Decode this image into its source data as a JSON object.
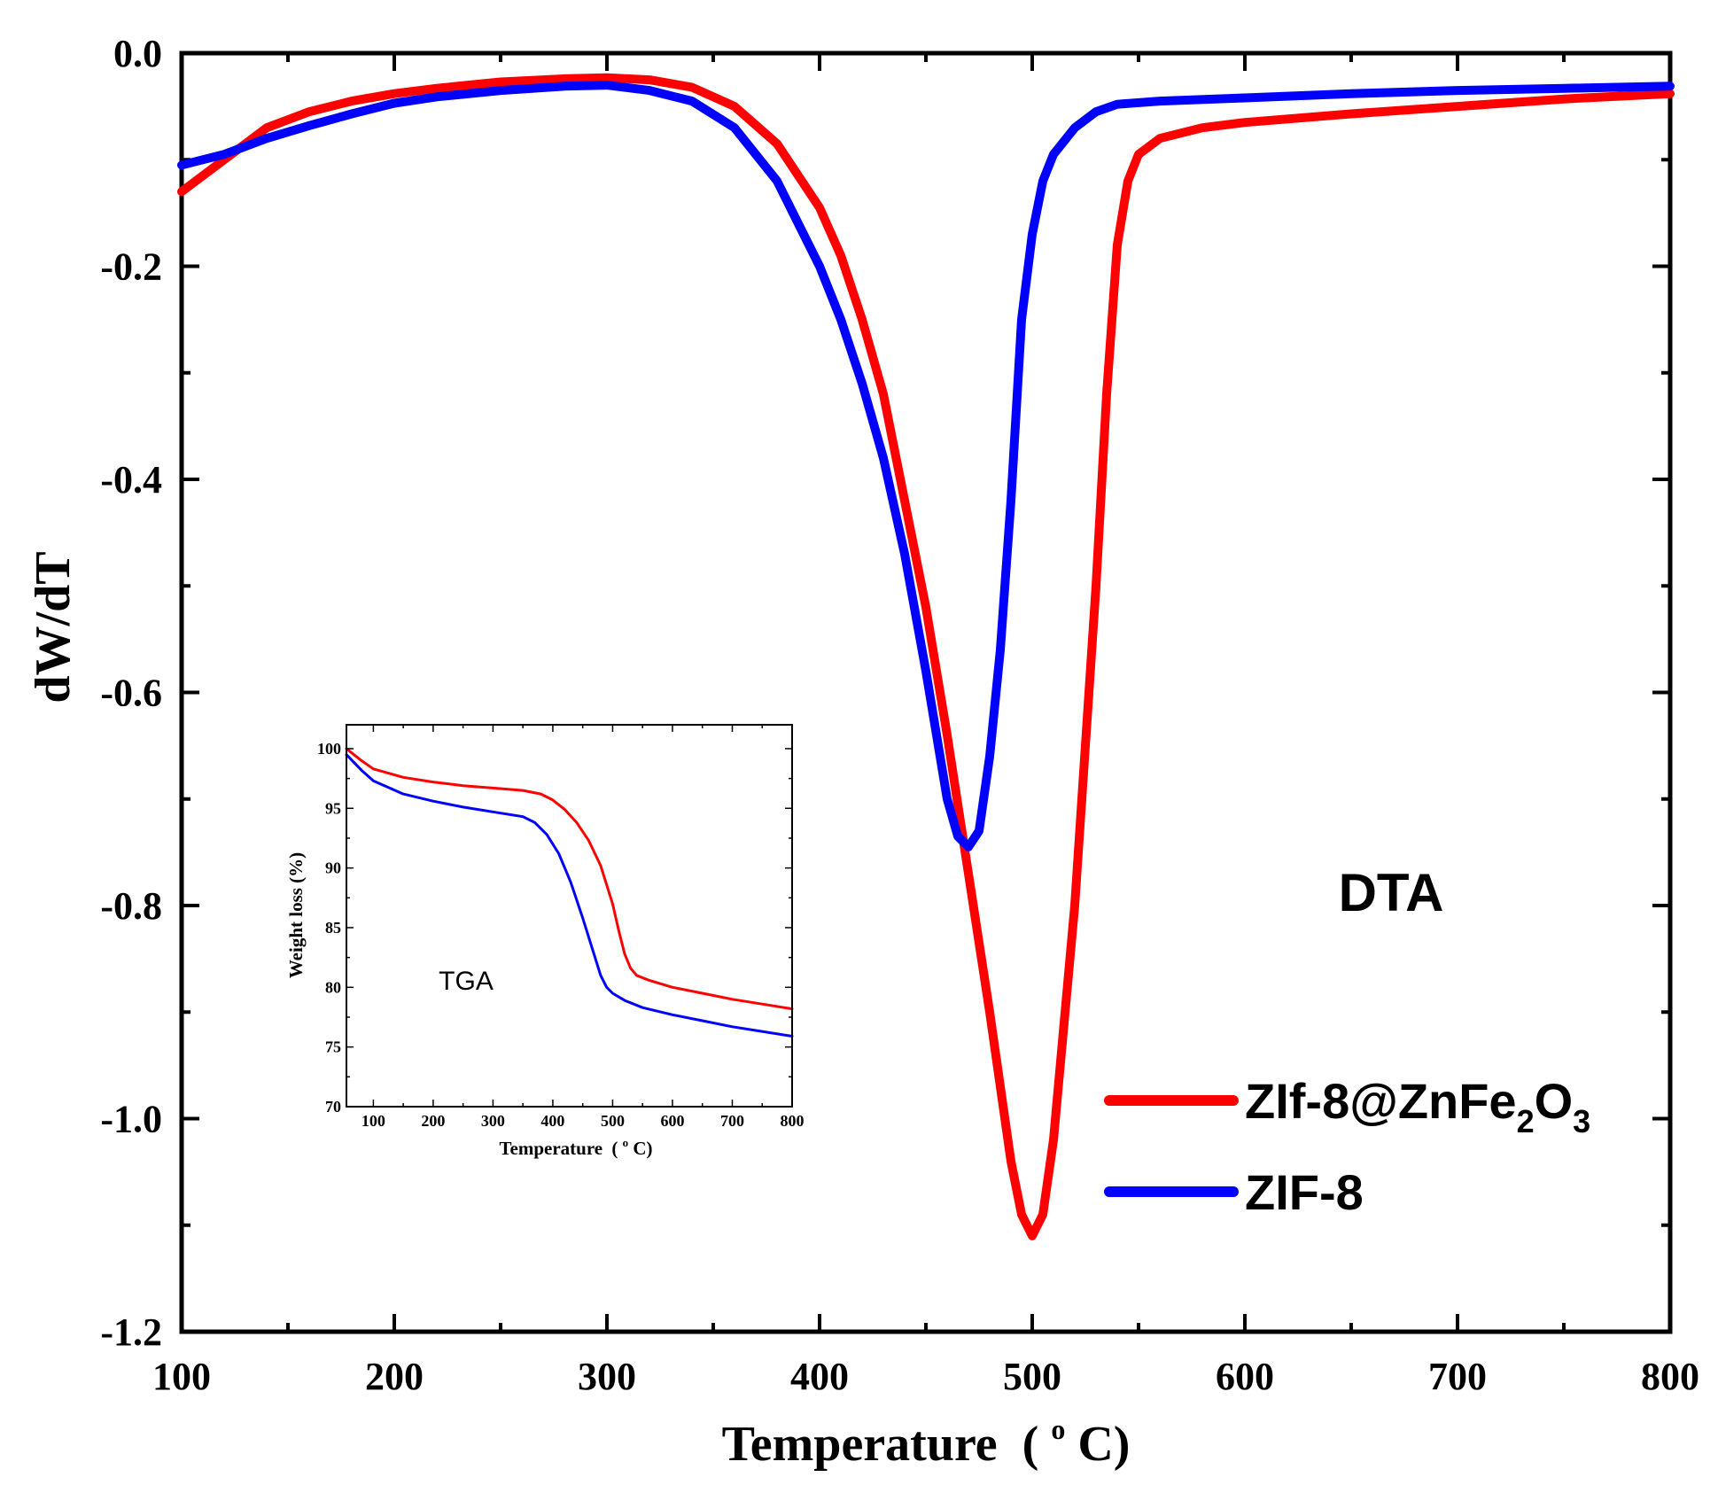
{
  "chart_data": [
    {
      "type": "line",
      "title": "DTA",
      "xlabel": "Temperature",
      "xlabel_unit": "(°C)",
      "xlabel_unit_pre": "(",
      "xlabel_unit_sup": "o",
      "xlabel_unit_post": "C)",
      "ylabel": "dW/dT",
      "xlim": [
        100,
        800
      ],
      "ylim": [
        -1.2,
        0.0
      ],
      "x_ticks": [
        100,
        200,
        300,
        400,
        500,
        600,
        700,
        800
      ],
      "x_tick_labels": [
        "100",
        "200",
        "300",
        "400",
        "500",
        "600",
        "700",
        "800"
      ],
      "y_ticks": [
        0.0,
        -0.2,
        -0.4,
        -0.6,
        -0.8,
        -1.0,
        -1.2
      ],
      "y_tick_labels": [
        "0.0",
        "-0.2",
        "-0.4",
        "-0.6",
        "-0.8",
        "-1.0",
        "-1.2"
      ],
      "legend_position": "bottom-right",
      "series": [
        {
          "name": "ZIf-8@ZnFe2O3",
          "legend_main": "ZIf-8@ZnFe",
          "legend_sub1": "2",
          "legend_mid": "O",
          "legend_sub2": "3",
          "color": "#ff0000",
          "x": [
            100,
            110,
            120,
            130,
            140,
            160,
            180,
            200,
            220,
            250,
            280,
            300,
            320,
            340,
            360,
            380,
            400,
            410,
            420,
            430,
            440,
            450,
            460,
            470,
            480,
            490,
            495,
            500,
            505,
            510,
            520,
            530,
            535,
            540,
            545,
            550,
            560,
            580,
            600,
            650,
            700,
            750,
            800
          ],
          "values": [
            -0.13,
            -0.115,
            -0.1,
            -0.085,
            -0.07,
            -0.055,
            -0.045,
            -0.038,
            -0.033,
            -0.027,
            -0.024,
            -0.023,
            -0.025,
            -0.032,
            -0.05,
            -0.085,
            -0.145,
            -0.19,
            -0.25,
            -0.32,
            -0.42,
            -0.52,
            -0.64,
            -0.77,
            -0.9,
            -1.04,
            -1.09,
            -1.11,
            -1.09,
            -1.02,
            -0.8,
            -0.5,
            -0.32,
            -0.18,
            -0.12,
            -0.095,
            -0.08,
            -0.07,
            -0.065,
            -0.057,
            -0.05,
            -0.043,
            -0.038
          ]
        },
        {
          "name": "ZIF-8",
          "legend_main": "ZIF-8",
          "color": "#0000ff",
          "x": [
            100,
            120,
            140,
            160,
            180,
            200,
            220,
            250,
            280,
            300,
            320,
            340,
            360,
            380,
            400,
            410,
            420,
            430,
            440,
            450,
            455,
            460,
            465,
            470,
            475,
            480,
            485,
            490,
            495,
            500,
            505,
            510,
            520,
            530,
            540,
            560,
            600,
            650,
            700,
            750,
            800
          ],
          "values": [
            -0.105,
            -0.095,
            -0.08,
            -0.068,
            -0.057,
            -0.047,
            -0.041,
            -0.035,
            -0.031,
            -0.03,
            -0.035,
            -0.045,
            -0.07,
            -0.12,
            -0.2,
            -0.25,
            -0.31,
            -0.38,
            -0.47,
            -0.58,
            -0.64,
            -0.7,
            -0.735,
            -0.745,
            -0.73,
            -0.66,
            -0.56,
            -0.42,
            -0.25,
            -0.17,
            -0.12,
            -0.095,
            -0.07,
            -0.055,
            -0.048,
            -0.045,
            -0.042,
            -0.038,
            -0.035,
            -0.033,
            -0.031
          ]
        }
      ]
    },
    {
      "type": "line",
      "title": "TGA",
      "xlabel": "Temperature",
      "xlabel_unit": "(°C)",
      "xlabel_unit_pre": "(",
      "xlabel_unit_sup": "o",
      "xlabel_unit_post": "C)",
      "ylabel": "Weight loss (%)",
      "xlim": [
        55,
        800
      ],
      "ylim": [
        70,
        102
      ],
      "x_ticks": [
        100,
        200,
        300,
        400,
        500,
        600,
        700,
        800
      ],
      "x_tick_labels": [
        "100",
        "200",
        "300",
        "400",
        "500",
        "600",
        "700",
        "800"
      ],
      "y_ticks": [
        70,
        75,
        80,
        85,
        90,
        95,
        100
      ],
      "y_tick_labels": [
        "70",
        "75",
        "80",
        "85",
        "90",
        "95",
        "100"
      ],
      "series": [
        {
          "name": "ZIf-8@ZnFe2O3",
          "color": "#ff0000",
          "x": [
            55,
            80,
            100,
            150,
            200,
            250,
            300,
            350,
            380,
            400,
            420,
            440,
            460,
            480,
            500,
            510,
            520,
            530,
            540,
            560,
            600,
            650,
            700,
            750,
            800
          ],
          "values": [
            100,
            99.0,
            98.3,
            97.6,
            97.2,
            96.9,
            96.7,
            96.5,
            96.2,
            95.7,
            94.9,
            93.8,
            92.3,
            90.2,
            87.0,
            84.8,
            82.8,
            81.6,
            81.0,
            80.6,
            80.0,
            79.5,
            79.0,
            78.6,
            78.2
          ]
        },
        {
          "name": "ZIF-8",
          "color": "#0000ff",
          "x": [
            55,
            80,
            100,
            150,
            200,
            250,
            300,
            350,
            370,
            390,
            410,
            430,
            450,
            470,
            480,
            490,
            500,
            520,
            550,
            600,
            650,
            700,
            750,
            800
          ],
          "values": [
            99.5,
            98.2,
            97.3,
            96.2,
            95.6,
            95.1,
            94.7,
            94.3,
            93.8,
            92.8,
            91.2,
            88.8,
            85.8,
            82.6,
            81.0,
            80.0,
            79.5,
            78.9,
            78.3,
            77.7,
            77.2,
            76.7,
            76.3,
            75.9
          ]
        }
      ]
    }
  ]
}
